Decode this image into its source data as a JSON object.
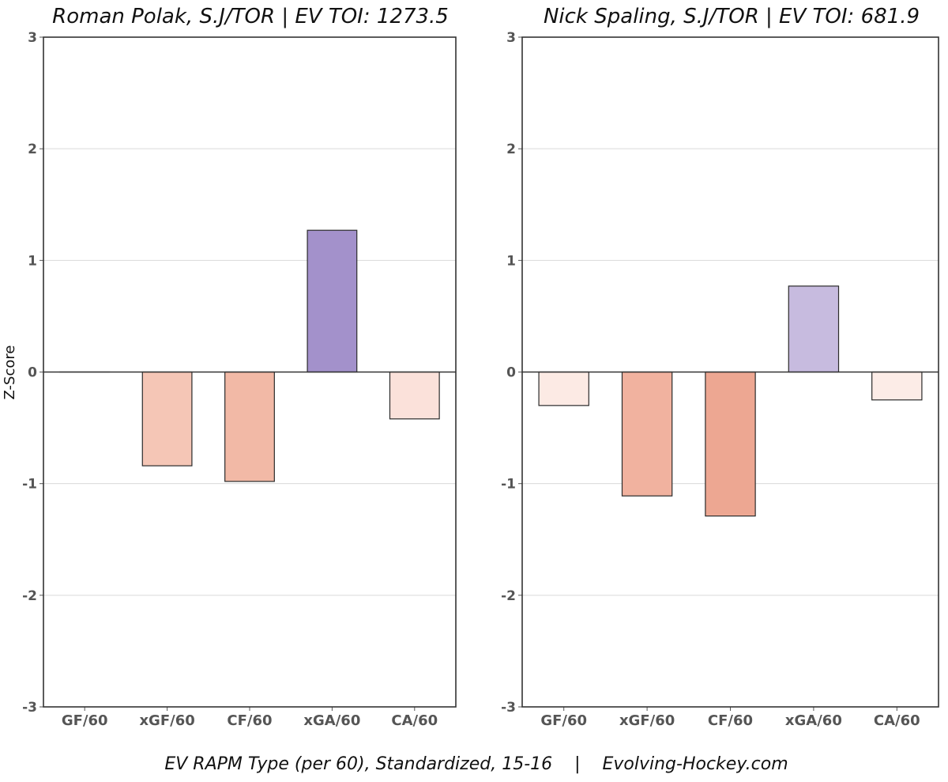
{
  "chart_data": [
    {
      "type": "bar",
      "title": "Roman Polak, S.J/TOR  |  EV TOI: 1273.5",
      "player": "Roman Polak",
      "team": "S.J/TOR",
      "ev_toi": 1273.5,
      "categories": [
        "GF/60",
        "xGF/60",
        "CF/60",
        "xGA/60",
        "CA/60"
      ],
      "values": [
        0.0,
        -0.84,
        -0.98,
        1.27,
        -0.42
      ],
      "colors": [
        "#fbe6df",
        "#f5c6b6",
        "#f2b9a6",
        "#a391cb",
        "#fbe1da"
      ],
      "xlabel": "",
      "ylabel": "Z-Score",
      "ylim": [
        -3,
        3
      ],
      "yticks": [
        "-3",
        "-2",
        "-1",
        "0",
        "1",
        "2",
        "3"
      ],
      "grid": true,
      "legend": "none"
    },
    {
      "type": "bar",
      "title": "Nick Spaling, S.J/TOR  |  EV TOI: 681.9",
      "player": "Nick Spaling",
      "team": "S.J/TOR",
      "ev_toi": 681.9,
      "categories": [
        "GF/60",
        "xGF/60",
        "CF/60",
        "xGA/60",
        "CA/60"
      ],
      "values": [
        -0.3,
        -1.11,
        -1.29,
        0.77,
        -0.25
      ],
      "colors": [
        "#fceae4",
        "#f1b29f",
        "#eda792",
        "#c7bbdf",
        "#fcece7"
      ],
      "xlabel": "",
      "ylabel": "",
      "ylim": [
        -3,
        3
      ],
      "yticks": [
        "-3",
        "-2",
        "-1",
        "0",
        "1",
        "2",
        "3"
      ],
      "grid": true,
      "legend": "none"
    }
  ],
  "caption": "EV RAPM Type (per 60), Standardized, 15-16    |    Evolving-Hockey.com"
}
